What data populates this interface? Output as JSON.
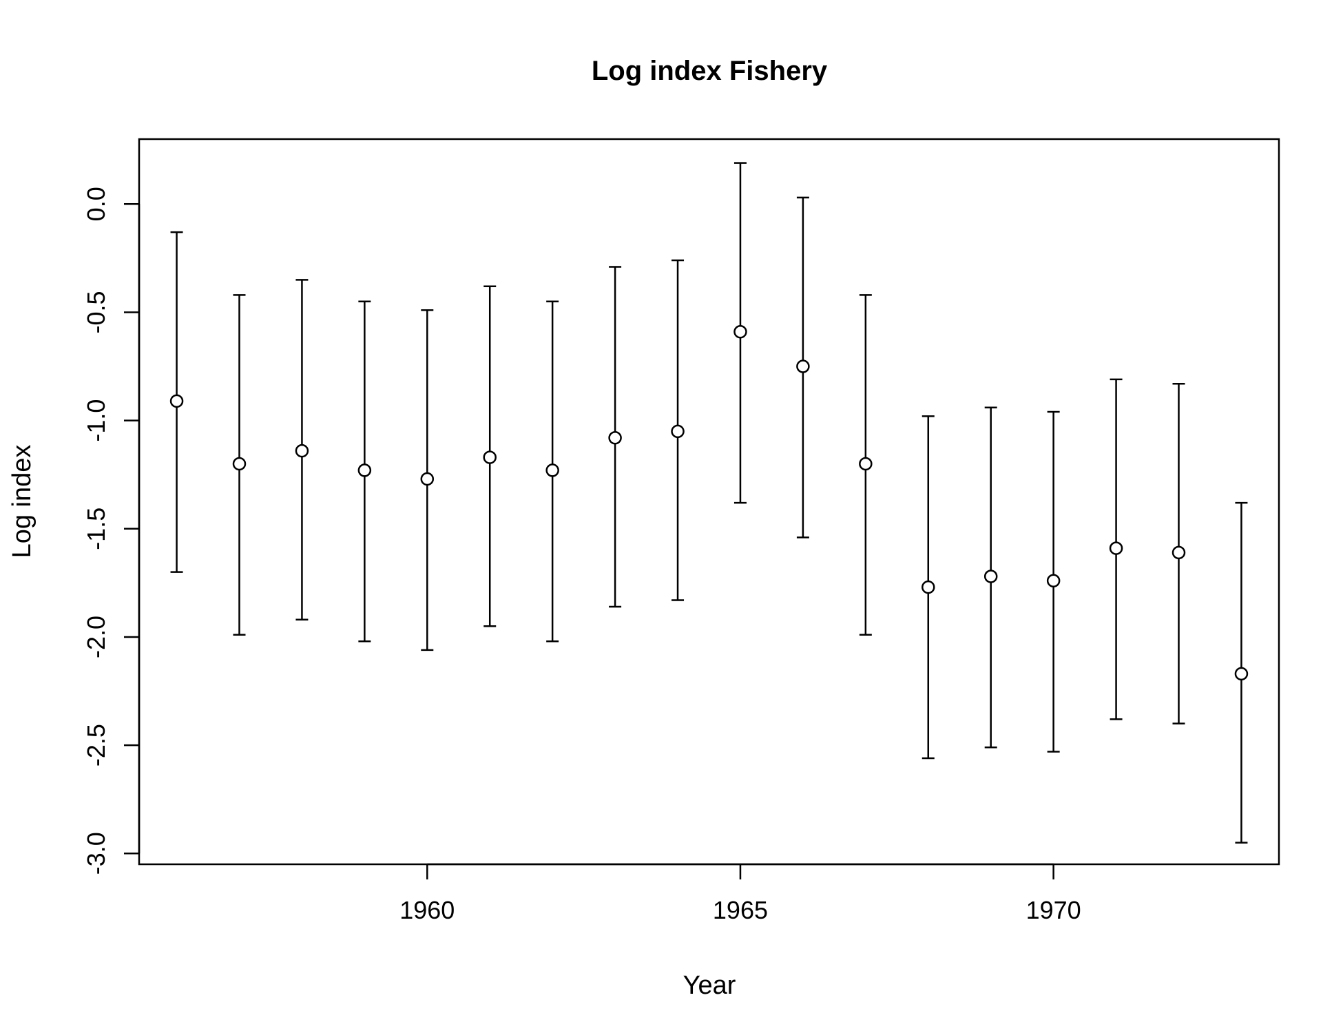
{
  "chart_data": {
    "type": "scatter",
    "title": "Log index Fishery",
    "xlabel": "Year",
    "ylabel": "Log index",
    "xlim": [
      1955.4,
      1973.6
    ],
    "ylim": [
      -3.05,
      0.3
    ],
    "x_ticks": [
      1960,
      1965,
      1970
    ],
    "x_tick_labels": [
      "1960",
      "1965",
      "1970"
    ],
    "y_ticks": [
      0.0,
      -0.5,
      -1.0,
      -1.5,
      -2.0,
      -2.5,
      -3.0
    ],
    "y_tick_labels": [
      "0.0",
      "-0.5",
      "-1.0",
      "-1.5",
      "-2.0",
      "-2.5",
      "-3.0"
    ],
    "grid": false,
    "error_bars": true,
    "points": [
      {
        "x": 1956,
        "y": -0.91,
        "lower": -1.7,
        "upper": -0.13
      },
      {
        "x": 1957,
        "y": -1.2,
        "lower": -1.99,
        "upper": -0.42
      },
      {
        "x": 1958,
        "y": -1.14,
        "lower": -1.92,
        "upper": -0.35
      },
      {
        "x": 1959,
        "y": -1.23,
        "lower": -2.02,
        "upper": -0.45
      },
      {
        "x": 1960,
        "y": -1.27,
        "lower": -2.06,
        "upper": -0.49
      },
      {
        "x": 1961,
        "y": -1.17,
        "lower": -1.95,
        "upper": -0.38
      },
      {
        "x": 1962,
        "y": -1.23,
        "lower": -2.02,
        "upper": -0.45
      },
      {
        "x": 1963,
        "y": -1.08,
        "lower": -1.86,
        "upper": -0.29
      },
      {
        "x": 1964,
        "y": -1.05,
        "lower": -1.83,
        "upper": -0.26
      },
      {
        "x": 1965,
        "y": -0.59,
        "lower": -1.38,
        "upper": 0.19
      },
      {
        "x": 1966,
        "y": -0.75,
        "lower": -1.54,
        "upper": 0.03
      },
      {
        "x": 1967,
        "y": -1.2,
        "lower": -1.99,
        "upper": -0.42
      },
      {
        "x": 1968,
        "y": -1.77,
        "lower": -2.56,
        "upper": -0.98
      },
      {
        "x": 1969,
        "y": -1.72,
        "lower": -2.51,
        "upper": -0.94
      },
      {
        "x": 1970,
        "y": -1.74,
        "lower": -2.53,
        "upper": -0.96
      },
      {
        "x": 1971,
        "y": -1.59,
        "lower": -2.38,
        "upper": -0.81
      },
      {
        "x": 1972,
        "y": -1.61,
        "lower": -2.4,
        "upper": -0.83
      },
      {
        "x": 1973,
        "y": -2.17,
        "lower": -2.95,
        "upper": -1.38
      }
    ],
    "colors": {
      "line": "#000000",
      "point_fill": "#ffffff",
      "background": "#ffffff"
    }
  }
}
